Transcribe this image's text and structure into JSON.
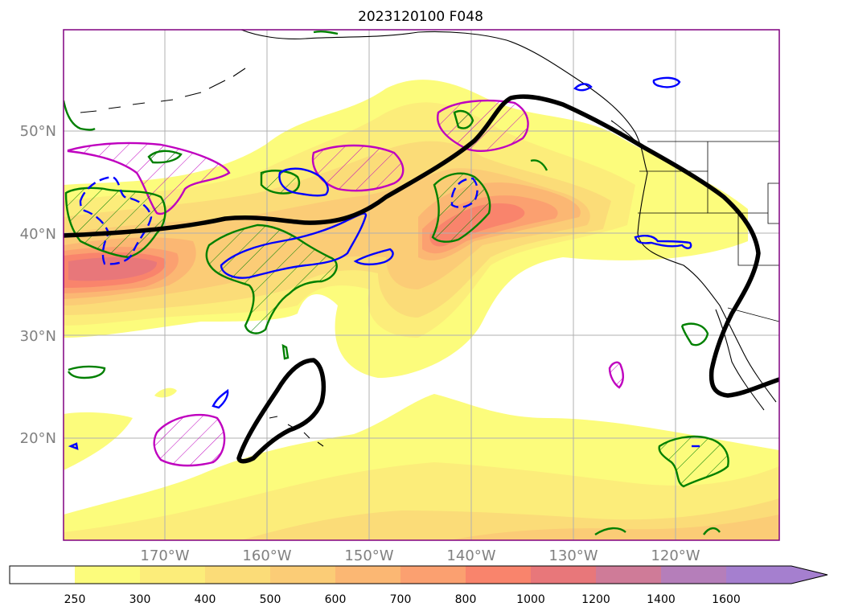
{
  "title": "2023120100 F048",
  "map": {
    "lat_labels": [
      "20°N",
      "30°N",
      "40°N",
      "50°N"
    ],
    "lon_labels": [
      "170°W",
      "160°W",
      "150°W",
      "140°W",
      "130°W",
      "120°W"
    ],
    "gridlines": true,
    "colors": {
      "frame": "#800080",
      "coast": "#000000",
      "grid": "#b0b0b0",
      "ivt_contour_thick": "#000000",
      "green_contour": "#008000",
      "blue_contour": "#0000ff",
      "magenta_contour": "#bf00bf"
    }
  },
  "colorbar": {
    "labels": [
      "250",
      "300",
      "400",
      "500",
      "600",
      "700",
      "800",
      "1000",
      "1200",
      "1400",
      "1600"
    ],
    "colors": [
      "#ffffff",
      "#fcfc7c",
      "#fced7a",
      "#fbdc78",
      "#fbcc76",
      "#fbb773",
      "#fba070",
      "#f9846c",
      "#e8777a",
      "#cf7b98",
      "#b57eba",
      "#a57fcf"
    ],
    "extend": "max"
  }
}
